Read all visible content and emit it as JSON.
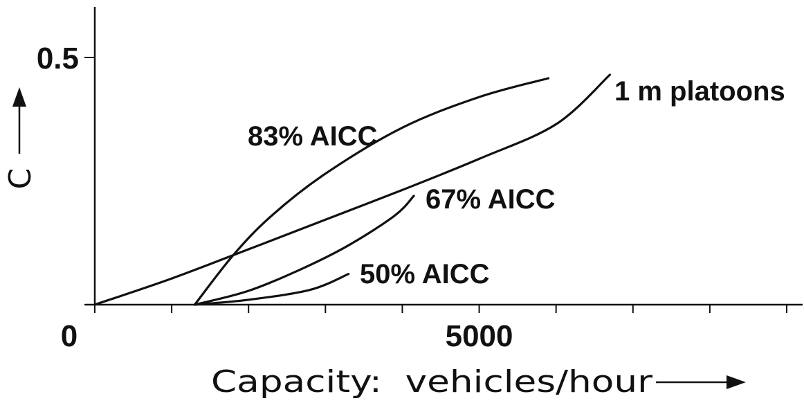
{
  "chart_data": {
    "type": "line",
    "xlabel": "Capacity:  vehicles/hour",
    "ylabel": "C",
    "xlim": [
      0,
      9000
    ],
    "ylim": [
      0,
      0.5
    ],
    "x_ticks": [
      0,
      1000,
      2000,
      3000,
      4000,
      5000,
      6000,
      7000,
      8000,
      9000
    ],
    "y_ticks": [
      0,
      0.5
    ],
    "x_tick_labels": [
      {
        "value": 0,
        "label": "0"
      },
      {
        "value": 5000,
        "label": "5000"
      }
    ],
    "y_tick_labels": [
      {
        "value": 0.5,
        "label": "0.5"
      }
    ],
    "legend": "none",
    "grid": false,
    "series": [
      {
        "name": "1 m platoons",
        "x": [
          0,
          1000,
          2000,
          3000,
          4000,
          5000,
          6000,
          6700
        ],
        "y": [
          0,
          0.053,
          0.112,
          0.172,
          0.232,
          0.295,
          0.365,
          0.465
        ]
      },
      {
        "name": "83% AICC",
        "x": [
          1300,
          1800,
          2300,
          3000,
          4000,
          5000,
          5900
        ],
        "y": [
          0,
          0.1,
          0.18,
          0.265,
          0.358,
          0.42,
          0.458
        ]
      },
      {
        "name": "67% AICC",
        "x": [
          1300,
          2000,
          2700,
          3300,
          3900,
          4150
        ],
        "y": [
          0,
          0.028,
          0.073,
          0.12,
          0.18,
          0.22
        ]
      },
      {
        "name": "50% AICC",
        "x": [
          1300,
          2000,
          2800,
          3300
        ],
        "y": [
          0,
          0.01,
          0.03,
          0.062
        ]
      }
    ]
  }
}
